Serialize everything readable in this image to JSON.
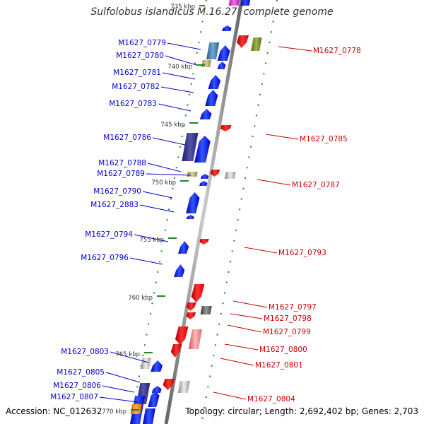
{
  "title": "Sulfolobus islandicus M.16.27, complete genome",
  "footer": {
    "accession": "Accession: NC_012632",
    "topology": "Topology: circular; Length: 2,692,402 bp; Genes: 2,703"
  },
  "kbp_ticks": [
    "735 kbp",
    "740 kbp",
    "745 kbp",
    "750 kbp",
    "755 kbp",
    "760 kbp",
    "765 kbp",
    "770 kbp"
  ],
  "genes_left": [
    "M1627_0779",
    "M1627_0780",
    "M1627_0781",
    "M1627_0782",
    "M1627_0783",
    "M1627_0786",
    "M1627_0788",
    "M1627_0789",
    "M1627_0790",
    "M1627_2883",
    "M1627_0794",
    "M1627_0796",
    "M1627_0803",
    "M1627_0805",
    "M1627_0806",
    "M1627_0807"
  ],
  "genes_right": [
    "M1627_0778",
    "M1627_0785",
    "M1627_0787",
    "M1627_0793",
    "M1627_0797",
    "M1627_0798",
    "M1627_0799",
    "M1627_0800",
    "M1627_0801",
    "M1627_0804"
  ],
  "colors": {
    "forward": "#0000ff",
    "reverse": "#ff0000",
    "axis": "#888888",
    "dots": "#228822"
  }
}
